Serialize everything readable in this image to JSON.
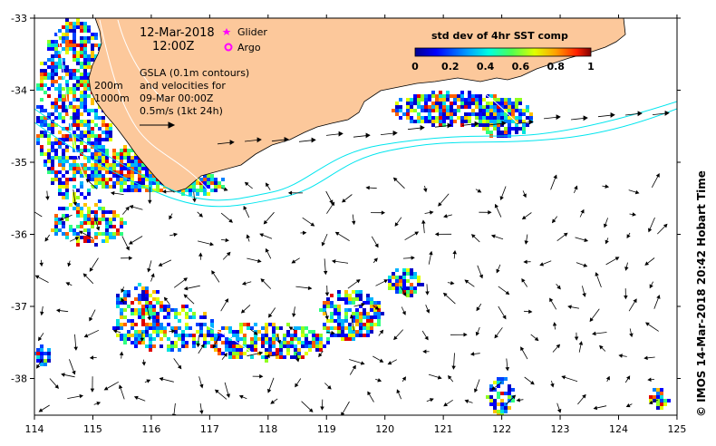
{
  "map": {
    "date": "12-Mar-2018",
    "time": "12:00Z",
    "legend_glider": "Glider",
    "legend_argo": "Argo",
    "gsla_line1": "GSLA (0.1m contours)",
    "gsla_line2": "and velocities for",
    "gsla_line3": "09-Mar 00:00Z",
    "velocity_scale": "0.5m/s (1kt 24h)",
    "isobath_200": "200m",
    "isobath_1000": "1000m",
    "colorbar_title": "std dev of 4hr SST comp",
    "colorbar_ticks": [
      "0",
      "0.2",
      "0.4",
      "0.6",
      "0.8",
      "1"
    ],
    "credit": "© IMOS 14-Mar-2018 20:42 Hobart Time",
    "colors": {
      "land": "#fcc89b",
      "isobath": "#00e5ee",
      "contour": "#ffffff",
      "glider": "#ff00ff",
      "argo": "#ff00ff"
    },
    "x_ticks": [
      "114",
      "115",
      "116",
      "117",
      "118",
      "119",
      "120",
      "121",
      "122",
      "123",
      "124",
      "125"
    ],
    "y_ticks": [
      "-33",
      "-34",
      "-35",
      "-36",
      "-37",
      "-38"
    ]
  }
}
